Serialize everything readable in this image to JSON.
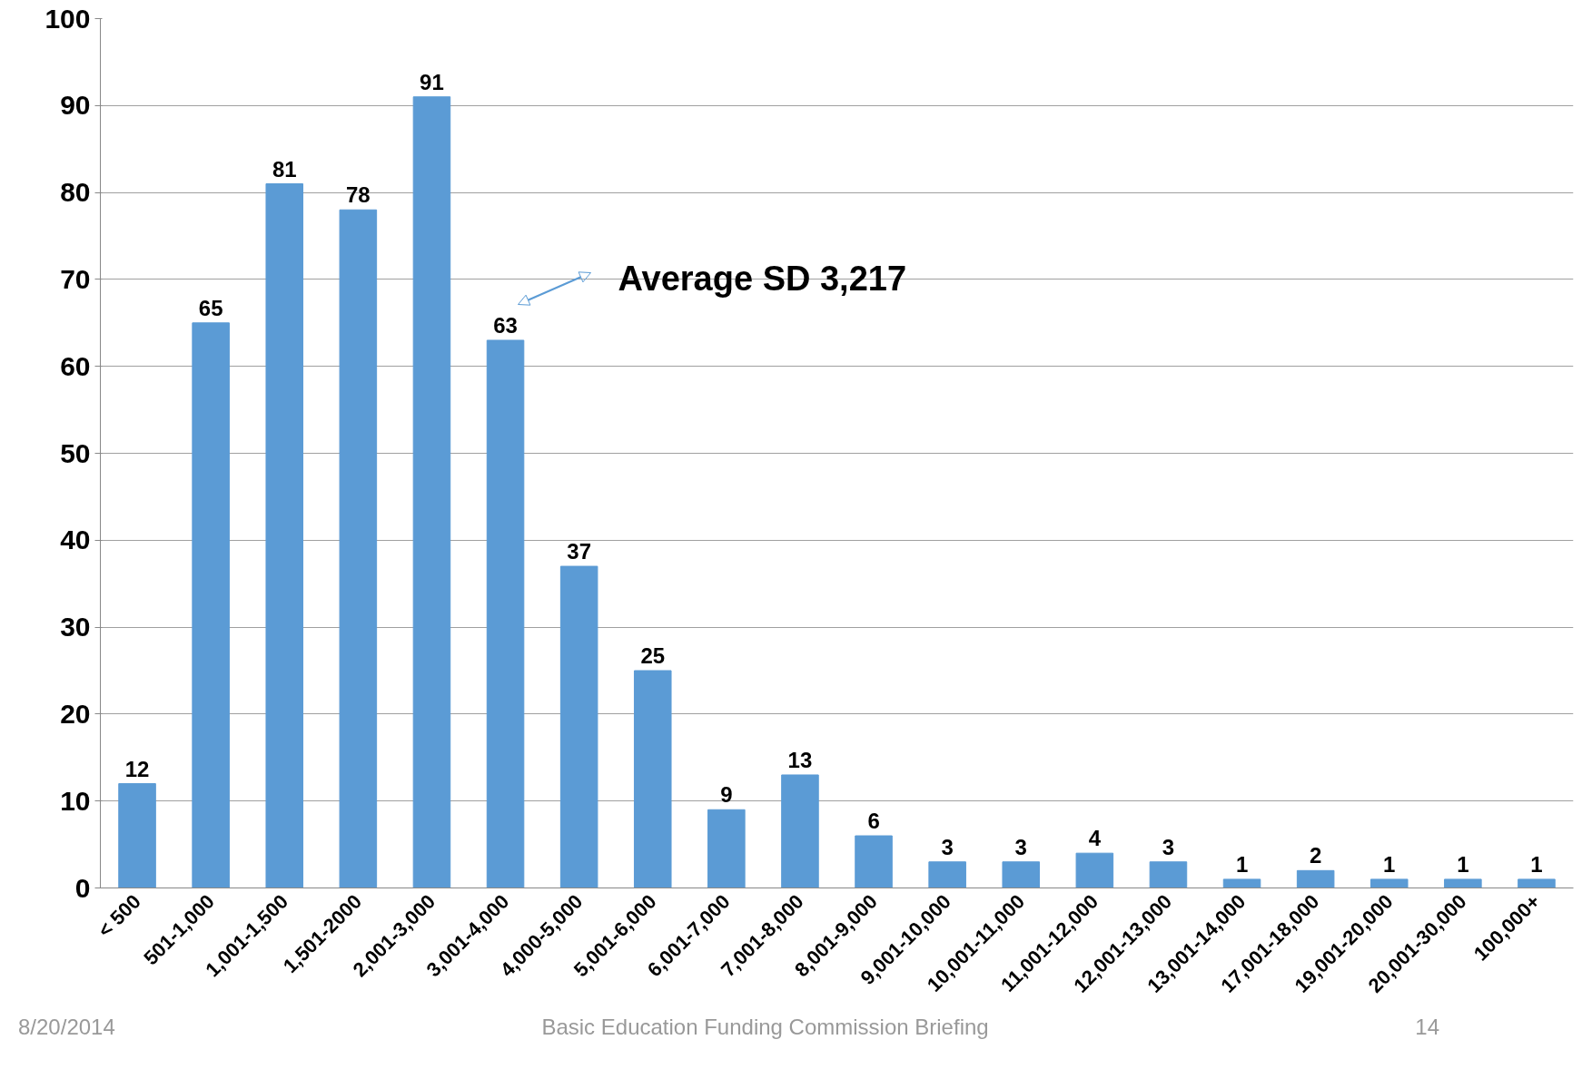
{
  "chart_data": {
    "type": "bar",
    "categories": [
      "< 500",
      "501-1,000",
      "1,001-1,500",
      "1,501-2000",
      "2,001-3,000",
      "3,001-4,000",
      "4,000-5,000",
      "5,001-6,000",
      "6,001-7,000",
      "7,001-8,000",
      "8,001-9,000",
      "9,001-10,000",
      "10,001-11,000",
      "11,001-12,000",
      "12,001-13,000",
      "13,001-14,000",
      "17,001-18,000",
      "19,001-20,000",
      "20,001-30,000",
      "100,000+"
    ],
    "values": [
      12,
      65,
      81,
      78,
      91,
      63,
      37,
      25,
      9,
      13,
      6,
      3,
      3,
      4,
      3,
      1,
      2,
      1,
      1,
      1
    ],
    "color": "#5b9bd5",
    "ylim": [
      0,
      100
    ],
    "yticks": [
      0,
      10,
      20,
      30,
      40,
      50,
      60,
      70,
      80,
      90,
      100
    ],
    "grid": "y",
    "data_labels": true,
    "annotations": [
      "Average SD 3,217",
      "8/20/2014",
      "Basic Education Funding Commission Briefing",
      "14"
    ]
  }
}
